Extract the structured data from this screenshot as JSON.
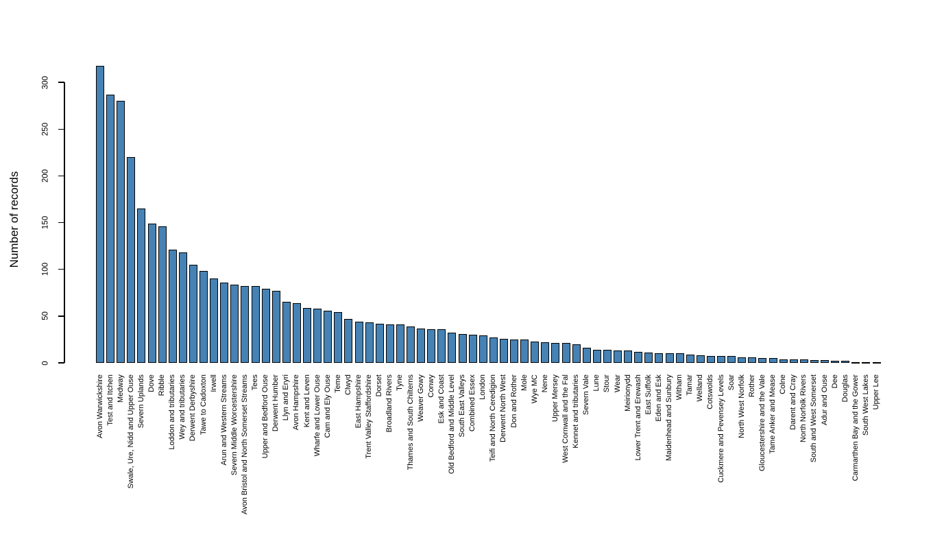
{
  "chart_data": {
    "type": "bar",
    "title": "",
    "xlabel": "",
    "ylabel": "Number of records",
    "yticks": [
      0,
      50,
      100,
      150,
      200,
      250,
      300
    ],
    "ylim": [
      0,
      320
    ],
    "grid": false,
    "legend": null,
    "bar_color": "#4682B4",
    "bar_border_color": "#000000",
    "categories": [
      "Avon Warwickshire",
      "Test and Itchen",
      "Medway",
      "Swale, Ure, Nidd and Upper Ouse",
      "Severn Uplands",
      "Dove",
      "Ribble",
      "Loddon and tributaries",
      "Wey and tributaries",
      "Derwent Derbyshire",
      "Tawe to Cadoxton",
      "Irwell",
      "Arun and Western Streams",
      "Severn Middle Worcestershire",
      "Avon Bristol and North Somerset Streams",
      "Tees",
      "Upper and Bedford Ouse",
      "Derwent Humber",
      "Llyn and Eryri",
      "Avon Hampshire",
      "Kent and Leven",
      "Wharfe and Lower Ouse",
      "Cam and Ely Ouse",
      "Teme",
      "Clwyd",
      "East Hampshire",
      "Trent Valley Staffordshire",
      "Dorset",
      "Broadland Rivers",
      "Tyne",
      "Thames and South Chilterns",
      "Weaver Gowy",
      "Conwy",
      "Esk and Coast",
      "Old Bedford and Middle Level",
      "South East Valleys",
      "Combined Essex",
      "London",
      "Teifi and North Ceredigion",
      "Derwent North West",
      "Don and Rother",
      "Mole",
      "Wye MC",
      "Nene",
      "Upper Mersey",
      "West Cornwall and the Fal",
      "Kennet and tributaries",
      "Severn Vale",
      "Lune",
      "Stour",
      "Wear",
      "Meirionydd",
      "Lower Trent and Erewash",
      "East Suffolk",
      "Eden and Esk",
      "Maidenhead and Sunbury",
      "Witham",
      "Tamar",
      "Welland",
      "Cotswolds",
      "Cuckmere and Pevensey Levels",
      "Soar",
      "North West Norfolk",
      "Rother",
      "Gloucestershire and the Vale",
      "Tame Anker and Mease",
      "Colne",
      "Darent and Cray",
      "North Norfolk Rivers",
      "South and West Somerset",
      "Adur and Ouse",
      "Dee",
      "Douglas",
      "Carmarthen Bay and the Gower",
      "South West Lakes",
      "Upper Lee"
    ],
    "values": [
      318,
      287,
      280,
      220,
      165,
      149,
      146,
      121,
      118,
      105,
      98,
      90,
      86,
      84,
      82,
      82,
      79,
      77,
      65,
      64,
      59,
      58,
      56,
      54,
      47,
      44,
      43,
      42,
      41,
      41,
      39,
      37,
      36,
      36,
      32,
      31,
      30,
      29,
      27,
      26,
      25,
      25,
      23,
      22,
      21,
      21,
      20,
      16,
      14,
      14,
      13,
      13,
      12,
      11,
      10,
      10,
      10,
      9,
      8,
      7,
      7,
      7,
      6,
      6,
      5,
      5,
      4,
      4,
      4,
      3,
      3,
      2,
      2,
      1,
      1,
      1
    ]
  }
}
